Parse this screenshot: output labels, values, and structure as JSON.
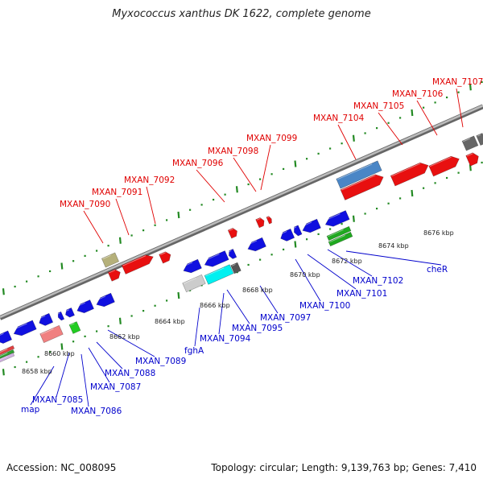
{
  "title": "Myxococcus xanthus DK 1622, complete genome",
  "footer": {
    "accession": "Accession: NC_008095",
    "summary": "Topology: circular; Length: 9,139,763 bp; Genes: 7,410"
  },
  "colors": {
    "forward_label": "#e00000",
    "reverse_label": "#0000cc",
    "backbone": "#999999",
    "tick_forward": "#2a8a2a",
    "tick_reverse": "#2a8a2a"
  },
  "forward_labels": [
    {
      "text": "MXAN_7090"
    },
    {
      "text": "MXAN_7091"
    },
    {
      "text": "MXAN_7092"
    },
    {
      "text": "MXAN_7096"
    },
    {
      "text": "MXAN_7098"
    },
    {
      "text": "MXAN_7099"
    },
    {
      "text": "MXAN_7104"
    },
    {
      "text": "MXAN_7105"
    },
    {
      "text": "MXAN_7106"
    },
    {
      "text": "MXAN_7107"
    }
  ],
  "reverse_labels": [
    {
      "text": "map"
    },
    {
      "text": "MXAN_7085"
    },
    {
      "text": "MXAN_7086"
    },
    {
      "text": "MXAN_7087"
    },
    {
      "text": "MXAN_7088"
    },
    {
      "text": "MXAN_7089"
    },
    {
      "text": "fghA"
    },
    {
      "text": "MXAN_7094"
    },
    {
      "text": "MXAN_7095"
    },
    {
      "text": "MXAN_7097"
    },
    {
      "text": "MXAN_7100"
    },
    {
      "text": "MXAN_7101"
    },
    {
      "text": "MXAN_7102"
    },
    {
      "text": "cheR"
    }
  ],
  "position_labels": [
    {
      "text": "8658 kbp"
    },
    {
      "text": "8660 kbp"
    },
    {
      "text": "8662 kbp"
    },
    {
      "text": "8664 kbp"
    },
    {
      "text": "8666 kbp"
    },
    {
      "text": "8668 kbp"
    },
    {
      "text": "8670 kbp"
    },
    {
      "text": "8672 kbp"
    },
    {
      "text": "8674 kbp"
    },
    {
      "text": "8676 kbp"
    }
  ]
}
